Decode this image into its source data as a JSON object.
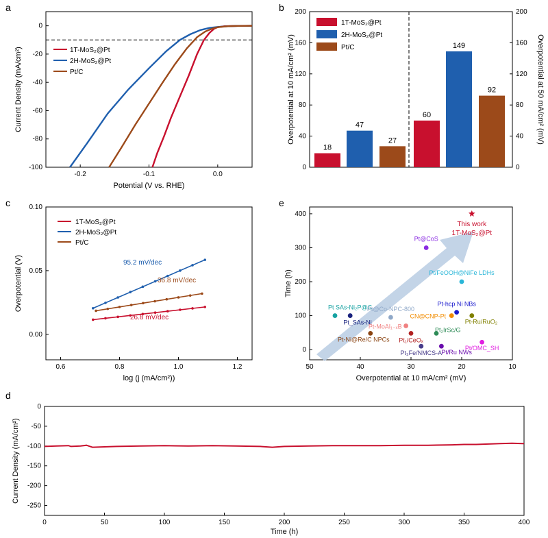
{
  "colors": {
    "red": "#c8102e",
    "blue": "#1f5fae",
    "brown": "#9c4a1a",
    "black": "#000000",
    "arrow": "#b9cde3"
  },
  "chart_data": [
    {
      "panel": "a",
      "type": "line",
      "xlabel": "Potential (V vs. RHE)",
      "ylabel": "Current Density (mA/cm²)",
      "xlim": [
        -0.25,
        0.05
      ],
      "ylim": [
        -100,
        10
      ],
      "xticks": [
        "-0.2",
        "-0.1",
        "0.0"
      ],
      "yticks": [
        "0",
        "-20",
        "-40",
        "-60",
        "-80",
        "-100"
      ],
      "reference_line_y": -10,
      "legend": [
        "1T-MoS₂@Pt",
        "2H-MoS₂@Pt",
        "Pt/C"
      ],
      "series": [
        {
          "name": "1T-MoS₂@Pt",
          "color": "red",
          "x": [
            -0.095,
            -0.088,
            -0.078,
            -0.068,
            -0.055,
            -0.042,
            -0.03,
            -0.02,
            -0.012,
            -0.005,
            0.0,
            0.01,
            0.03,
            0.05
          ],
          "y": [
            -100,
            -90,
            -78,
            -65,
            -50,
            -35,
            -20,
            -10,
            -5,
            -2,
            -1,
            -0.3,
            -0.05,
            0
          ]
        },
        {
          "name": "2H-MoS₂@Pt",
          "color": "blue",
          "x": [
            -0.215,
            -0.19,
            -0.16,
            -0.13,
            -0.1,
            -0.075,
            -0.055,
            -0.04,
            -0.025,
            -0.012,
            0.0,
            0.015,
            0.03,
            0.05
          ],
          "y": [
            -100,
            -83,
            -62,
            -45,
            -30,
            -18,
            -10,
            -6,
            -3,
            -1.5,
            -0.8,
            -0.3,
            -0.1,
            0
          ]
        },
        {
          "name": "Pt/C",
          "color": "brown",
          "x": [
            -0.158,
            -0.14,
            -0.12,
            -0.1,
            -0.08,
            -0.062,
            -0.045,
            -0.03,
            -0.018,
            -0.008,
            0.0,
            0.015,
            0.03,
            0.05
          ],
          "y": [
            -100,
            -86,
            -70,
            -55,
            -40,
            -27,
            -16,
            -8,
            -4,
            -2,
            -1,
            -0.3,
            -0.1,
            0
          ]
        }
      ]
    },
    {
      "panel": "b",
      "type": "bar",
      "ylabel_left": "Overpotential at 10 mA/cm² (mV)",
      "ylabel_right": "Overpotential at 50 mA/cm² (mV)",
      "ylim": [
        0,
        200
      ],
      "yticks": [
        "0",
        "40",
        "80",
        "120",
        "160",
        "200"
      ],
      "legend": [
        "1T-MoS₂@Pt",
        "2H-MoS₂@Pt",
        "Pt/C"
      ],
      "groups": [
        {
          "name": "10 mA/cm²",
          "values": [
            18,
            47,
            27
          ],
          "labels": [
            "18",
            "47",
            "27"
          ]
        },
        {
          "name": "50 mA/cm²",
          "values": [
            60,
            149,
            92
          ],
          "labels": [
            "60",
            "149",
            "92"
          ]
        }
      ]
    },
    {
      "panel": "c",
      "type": "line",
      "xlabel": "log (j (mA/cm²))",
      "ylabel": "Overpotential (V)",
      "xlim": [
        0.55,
        1.25
      ],
      "ylim": [
        -0.02,
        0.1
      ],
      "xticks": [
        "0.6",
        "0.8",
        "1.0",
        "1.2"
      ],
      "yticks": [
        "0.00",
        "0.05",
        "0.10"
      ],
      "legend": [
        "1T-MoS₂@Pt",
        "2H-MoS₂@Pt",
        "Pt/C"
      ],
      "series": [
        {
          "name": "1T-MoS₂@Pt",
          "color": "red",
          "x": [
            0.71,
            1.09
          ],
          "y": [
            0.0115,
            0.0215
          ],
          "slope_label": "26.8 mV/dec"
        },
        {
          "name": "2H-MoS₂@Pt",
          "color": "blue",
          "x": [
            0.71,
            1.09
          ],
          "y": [
            0.0205,
            0.0585
          ],
          "slope_label": "95.2 mV/dec"
        },
        {
          "name": "Pt/C",
          "color": "brown",
          "x": [
            0.72,
            1.08
          ],
          "y": [
            0.0185,
            0.032
          ],
          "slope_label": "36.8 mV/dec"
        }
      ]
    },
    {
      "panel": "d",
      "type": "line",
      "xlabel": "Time (h)",
      "ylabel": "Current Density (mA/cm²)",
      "xlim": [
        0,
        400
      ],
      "ylim": [
        -275,
        0
      ],
      "xticks": [
        "0",
        "50",
        "100",
        "150",
        "200",
        "250",
        "300",
        "350",
        "400"
      ],
      "yticks": [
        "0",
        "-50",
        "-100",
        "-150",
        "-200",
        "-250"
      ],
      "series": [
        {
          "name": "1T-MoS₂@Pt",
          "color": "red",
          "x": [
            0,
            10,
            20,
            22,
            30,
            35,
            38,
            40,
            60,
            80,
            100,
            120,
            140,
            160,
            180,
            190,
            200,
            220,
            240,
            260,
            280,
            300,
            320,
            340,
            350,
            360,
            370,
            380,
            390,
            400
          ],
          "y": [
            -101,
            -100,
            -99,
            -101,
            -100,
            -98,
            -101,
            -103,
            -101,
            -100,
            -99,
            -100,
            -99,
            -100,
            -101,
            -103,
            -101,
            -100,
            -99,
            -99,
            -99,
            -98,
            -98,
            -97,
            -96,
            -96,
            -95,
            -94,
            -93,
            -94
          ]
        }
      ]
    },
    {
      "panel": "e",
      "type": "scatter",
      "xlabel": "Overpotential at 10 mA/cm² (mV)",
      "ylabel": "Time (h)",
      "xlim": [
        50,
        10
      ],
      "ylim": [
        -30,
        420
      ],
      "xticks": [
        "50",
        "40",
        "30",
        "20",
        "10"
      ],
      "yticks": [
        "0",
        "100",
        "200",
        "300",
        "400"
      ],
      "highlight_label_1": "This work",
      "highlight_label_2": "1T-MoS₂@Pt",
      "points": [
        {
          "label": "Pt@CoS",
          "x": 27,
          "y": 300,
          "color": "#8a2be2"
        },
        {
          "label": "Pt/FeOOH@NiFe LDHs",
          "x": 20,
          "y": 200,
          "color": "#29b6d8"
        },
        {
          "label": "Pt SAs-Ni₂P@C",
          "x": 45,
          "y": 100,
          "color": "#17a2a2"
        },
        {
          "label": "Pt_SAs-Ni",
          "x": 42,
          "y": 100,
          "color": "#1a237e"
        },
        {
          "label": "Pt@Co-NPC-800",
          "x": 34,
          "y": 95,
          "color": "#8fa8c8"
        },
        {
          "label": "Pt-hcp Ni NBs",
          "x": 21,
          "y": 110,
          "color": "#1a1acd"
        },
        {
          "label": "CN@CNP-Pt",
          "x": 22,
          "y": 100,
          "color": "#f28c00"
        },
        {
          "label": "Pt-Ru/RuO₂",
          "x": 18,
          "y": 100,
          "color": "#808000"
        },
        {
          "label": "Pt-MoAl₁₋ₓB",
          "x": 31,
          "y": 70,
          "color": "#f08080"
        },
        {
          "label": "Pt₁/CeOₓ",
          "x": 30,
          "y": 48,
          "color": "#b22222"
        },
        {
          "label": "Pt₂IrSc/G",
          "x": 25,
          "y": 48,
          "color": "#2e8b57"
        },
        {
          "label": "Pt-Ni@Re/C NPCs",
          "x": 38,
          "y": 48,
          "color": "#8b4513"
        },
        {
          "label": "Pt₃Fe/NMCS-A",
          "x": 28,
          "y": 10,
          "color": "#483d8b"
        },
        {
          "label": "Pt/Ru NWs",
          "x": 24,
          "y": 10,
          "color": "#6a0dad"
        },
        {
          "label": "Pt/OMC_SH",
          "x": 16,
          "y": 22,
          "color": "#e020e0"
        },
        {
          "label": "This work",
          "x": 18,
          "y": 400,
          "color": "#c8102e",
          "marker": "star"
        }
      ]
    }
  ],
  "panel_letters": {
    "a": "a",
    "b": "b",
    "c": "c",
    "d": "d",
    "e": "e"
  }
}
